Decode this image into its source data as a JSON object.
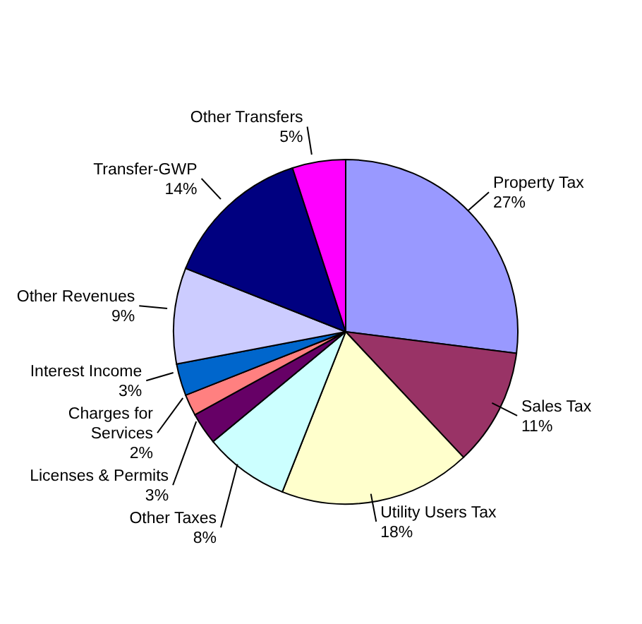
{
  "chart_data": {
    "type": "pie",
    "categories": [
      "Property Tax",
      "Sales Tax",
      "Utility Users Tax",
      "Other Taxes",
      "Licenses & Permits",
      "Charges for Services",
      "Interest Income",
      "Other Revenues",
      "Transfer-GWP",
      "Other Transfers"
    ],
    "values": [
      27,
      11,
      18,
      8,
      3,
      2,
      3,
      9,
      14,
      5
    ],
    "value_labels": [
      "27%",
      "11%",
      "18%",
      "8%",
      "3%",
      "2%",
      "3%",
      "9%",
      "14%",
      "5%"
    ],
    "colors": [
      "#9999ff",
      "#993366",
      "#ffffcc",
      "#ccffff",
      "#660066",
      "#ff8080",
      "#0066cc",
      "#ccccff",
      "#000080",
      "#ff00ff"
    ]
  }
}
